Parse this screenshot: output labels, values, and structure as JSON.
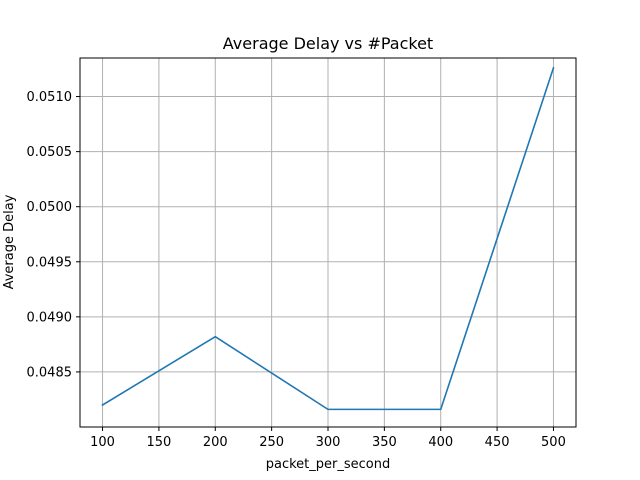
{
  "chart_data": {
    "type": "line",
    "title": "Average Delay vs #Packet",
    "xlabel": "packet_per_second",
    "ylabel": "Average Delay",
    "xlim": [
      80,
      520
    ],
    "ylim": [
      0.048,
      0.05135
    ],
    "xticks": [
      100,
      150,
      200,
      250,
      300,
      350,
      400,
      450,
      500
    ],
    "xtick_labels": [
      "100",
      "150",
      "200",
      "250",
      "300",
      "350",
      "400",
      "450",
      "500"
    ],
    "yticks": [
      0.0485,
      0.049,
      0.0495,
      0.05,
      0.0505,
      0.051
    ],
    "ytick_labels": [
      "0.0485",
      "0.0490",
      "0.0495",
      "0.0500",
      "0.0505",
      "0.0510"
    ],
    "grid": true,
    "series": [
      {
        "color": "#1f77b4",
        "x": [
          100,
          200,
          300,
          400,
          500
        ],
        "y": [
          0.0482,
          0.04882,
          0.04816,
          0.04816,
          0.05126
        ]
      }
    ]
  }
}
